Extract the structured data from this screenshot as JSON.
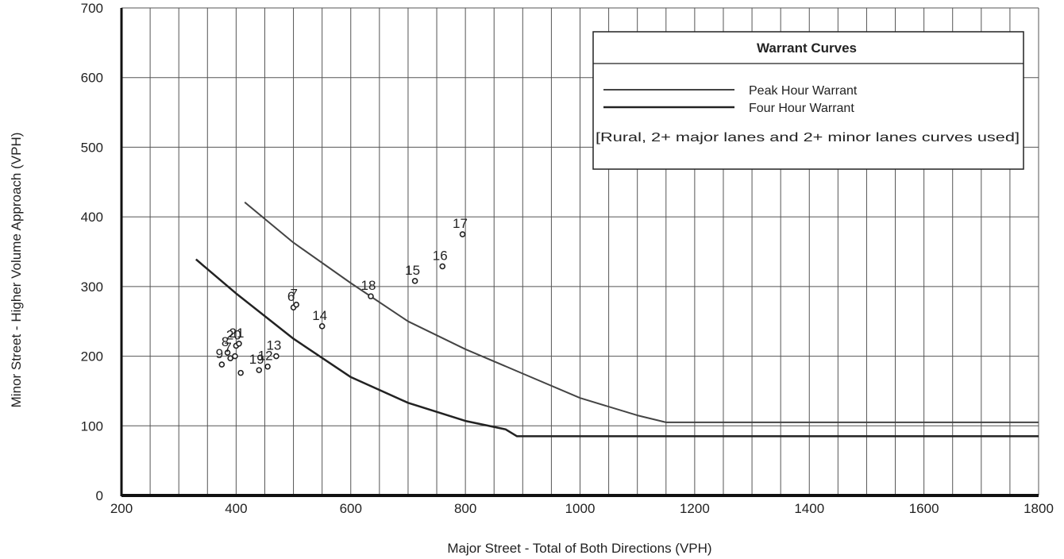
{
  "chart_data": {
    "type": "scatter",
    "title": "",
    "xlabel": "Major Street - Total of Both Directions (VPH)",
    "ylabel": "Minor Street - Higher Volume Approach (VPH)",
    "xlim": [
      200,
      1800
    ],
    "ylim": [
      0,
      700
    ],
    "x_ticks": [
      "200",
      "400",
      "600",
      "800",
      "1000",
      "1200",
      "1400",
      "1600",
      "1800"
    ],
    "y_ticks": [
      "0",
      "100",
      "200",
      "300",
      "400",
      "500",
      "600",
      "700"
    ],
    "grid": true,
    "legend": {
      "title": "Warrant Curves",
      "placement": "top-right",
      "entries": [
        "Peak Hour Warrant",
        "Four Hour Warrant"
      ],
      "note": "[Rural,  2+ major lanes and 2+ minor lanes curves used]"
    },
    "series": [
      {
        "name": "Peak Hour Warrant",
        "x": [
          415,
          500,
          600,
          700,
          800,
          900,
          1000,
          1100,
          1150,
          1800
        ],
        "y": [
          421,
          363,
          305,
          250,
          210,
          175,
          140,
          115,
          105,
          105
        ]
      },
      {
        "name": "Four Hour Warrant",
        "x": [
          330,
          400,
          500,
          600,
          700,
          800,
          870,
          890,
          1800
        ],
        "y": [
          339,
          290,
          225,
          170,
          133,
          107,
          95,
          85,
          85
        ]
      }
    ],
    "points": [
      {
        "label": "9",
        "x": 375,
        "y": 188
      },
      {
        "label": "8",
        "x": 385,
        "y": 205
      },
      {
        "label": "7",
        "x": 390,
        "y": 197
      },
      {
        "label": "20",
        "x": 400,
        "y": 215
      },
      {
        "label": "21",
        "x": 405,
        "y": 218
      },
      {
        "label": "",
        "x": 398,
        "y": 200
      },
      {
        "label": "",
        "x": 408,
        "y": 176
      },
      {
        "label": "19",
        "x": 440,
        "y": 180
      },
      {
        "label": "12",
        "x": 455,
        "y": 185
      },
      {
        "label": "13",
        "x": 470,
        "y": 200
      },
      {
        "label": "6",
        "x": 500,
        "y": 270
      },
      {
        "label": "7",
        "x": 505,
        "y": 274
      },
      {
        "label": "14",
        "x": 550,
        "y": 243
      },
      {
        "label": "18",
        "x": 635,
        "y": 286
      },
      {
        "label": "15",
        "x": 712,
        "y": 308
      },
      {
        "label": "16",
        "x": 760,
        "y": 329
      },
      {
        "label": "17",
        "x": 795,
        "y": 375
      }
    ]
  }
}
